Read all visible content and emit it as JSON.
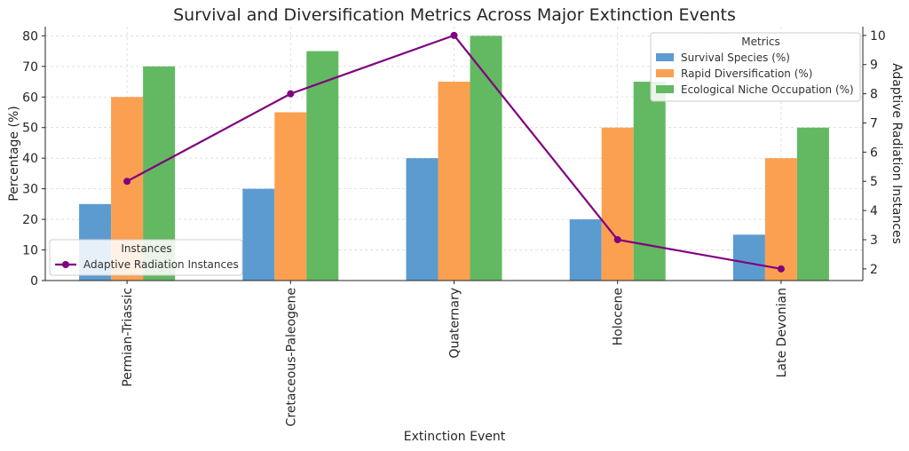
{
  "chart_data": {
    "type": "bar",
    "title": "Survival and Diversification Metrics Across Major Extinction Events",
    "xlabel": "Extinction Event",
    "ylabel": "Percentage (%)",
    "y2label": "Adaptive Radiation Instances",
    "categories": [
      "Permian-Triassic",
      "Cretaceous-Paleogene",
      "Quaternary",
      "Holocene",
      "Late Devonian"
    ],
    "ylim": [
      0,
      83
    ],
    "yticks": [
      0,
      10,
      20,
      30,
      40,
      50,
      60,
      70,
      80
    ],
    "y2lim": [
      1.6,
      10.3
    ],
    "y2ticks": [
      2,
      3,
      4,
      5,
      6,
      7,
      8,
      9,
      10
    ],
    "grid": true,
    "series": [
      {
        "name": "Survival Species (%)",
        "type": "bar",
        "color": "#5b9bd0",
        "values": [
          25,
          30,
          40,
          20,
          15
        ]
      },
      {
        "name": "Rapid Diversification (%)",
        "type": "bar",
        "color": "#fba050",
        "values": [
          60,
          55,
          65,
          50,
          40
        ]
      },
      {
        "name": "Ecological Niche Occupation (%)",
        "type": "bar",
        "color": "#63b862",
        "values": [
          70,
          75,
          80,
          65,
          50
        ]
      },
      {
        "name": "Adaptive Radiation Instances",
        "type": "line",
        "axis": "right",
        "color": "#800080",
        "values": [
          5,
          8,
          10,
          3,
          2
        ]
      }
    ],
    "legend_bars": {
      "title": "Metrics",
      "position": "top-right"
    },
    "legend_line": {
      "title": "Instances",
      "position": "bottom-left"
    }
  }
}
